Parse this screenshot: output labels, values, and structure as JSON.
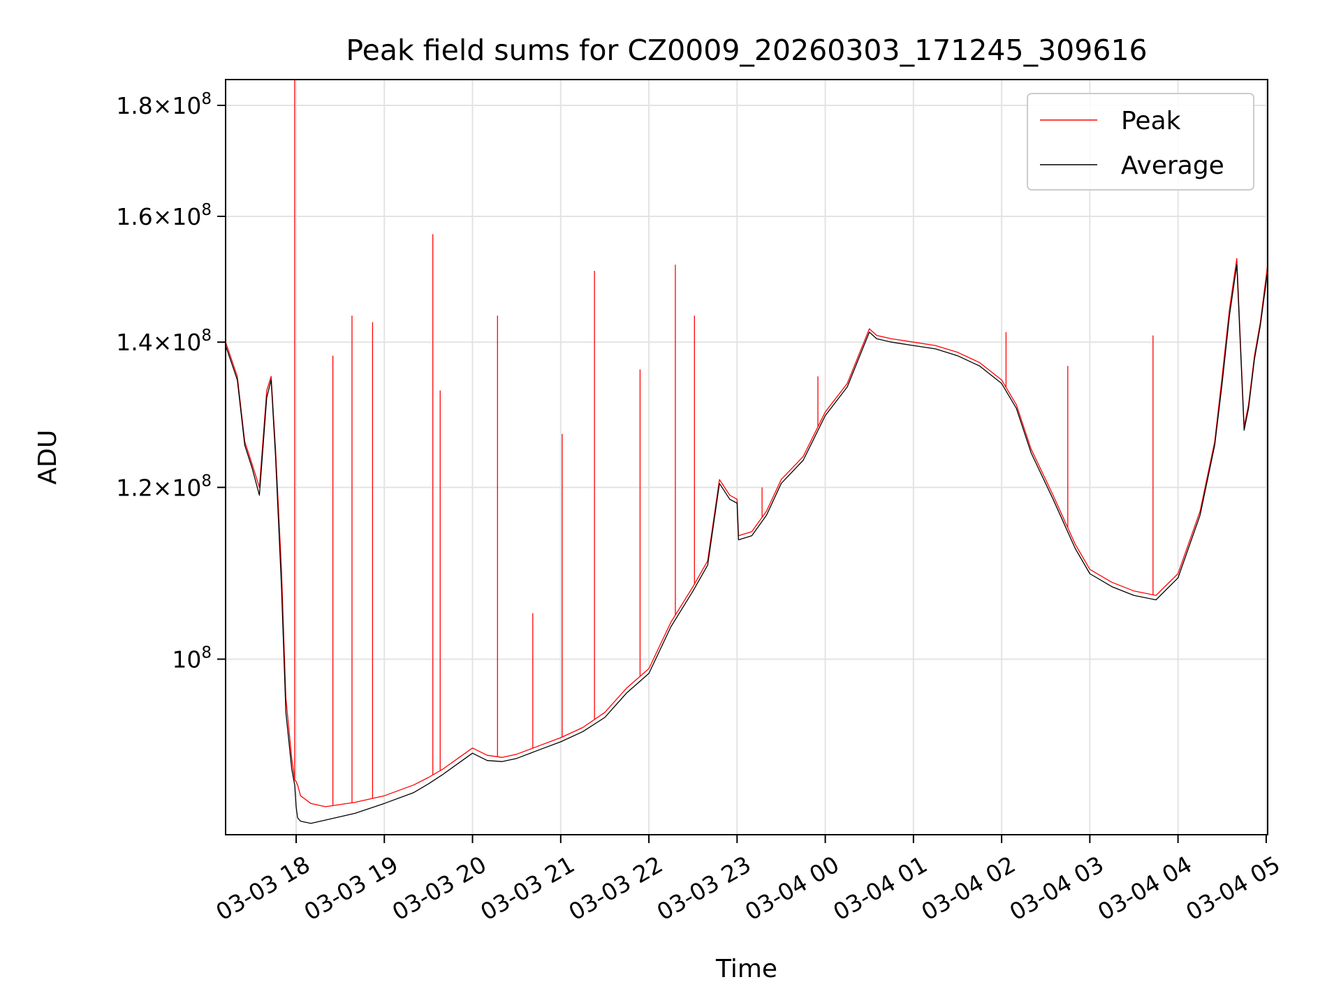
{
  "chart_data": {
    "type": "line",
    "title": "Peak field sums for CZ0009_20260303_171245_309616",
    "xlabel": "Time",
    "ylabel": "ADU",
    "yscale": "log",
    "ylim": [
      83000000,
      185000000
    ],
    "xlim": [
      "03-03 17:12",
      "03-04 05:01"
    ],
    "grid": true,
    "legend": "top-right",
    "x_ticks": [
      "03-03 18",
      "03-03 19",
      "03-03 20",
      "03-03 21",
      "03-03 22",
      "03-03 23",
      "03-04 00",
      "03-04 01",
      "03-04 02",
      "03-04 03",
      "03-04 04",
      "03-04 05"
    ],
    "y_ticks": [
      {
        "value": 100000000,
        "label": "10^8"
      },
      {
        "value": 120000000,
        "label": "1.2×10^8"
      },
      {
        "value": 140000000,
        "label": "1.4×10^8"
      },
      {
        "value": 160000000,
        "label": "1.6×10^8"
      },
      {
        "value": 180000000,
        "label": "1.8×10^8"
      }
    ],
    "series": [
      {
        "name": "Peak",
        "color": "#ff0000",
        "x": [
          "03-03 17:12",
          "03-03 17:20",
          "03-03 17:25",
          "03-03 17:30",
          "03-03 17:35",
          "03-03 17:40",
          "03-03 17:43",
          "03-03 17:46",
          "03-03 17:50",
          "03-03 17:53",
          "03-03 17:57",
          "03-03 17:59",
          "03-03 18:00",
          "03-03 18:01",
          "03-03 18:03",
          "03-03 18:10",
          "03-03 18:20",
          "03-03 18:40",
          "03-03 19:00",
          "03-03 19:20",
          "03-03 19:30",
          "03-03 19:40",
          "03-03 19:50",
          "03-03 20:00",
          "03-03 20:10",
          "03-03 20:20",
          "03-03 20:30",
          "03-03 20:45",
          "03-03 21:00",
          "03-03 21:15",
          "03-03 21:30",
          "03-03 21:45",
          "03-03 22:00",
          "03-03 22:15",
          "03-03 22:30",
          "03-03 22:40",
          "03-03 22:48",
          "03-03 22:55",
          "03-03 23:00",
          "03-03 23:01",
          "03-03 23:10",
          "03-03 23:20",
          "03-03 23:30",
          "03-03 23:45",
          "03-04 00:00",
          "03-04 00:15",
          "03-04 00:30",
          "03-04 00:35",
          "03-04 00:45",
          "03-04 01:00",
          "03-04 01:15",
          "03-04 01:30",
          "03-04 01:45",
          "03-04 02:00",
          "03-04 02:10",
          "03-04 02:20",
          "03-04 02:35",
          "03-04 02:50",
          "03-04 03:00",
          "03-04 03:15",
          "03-04 03:30",
          "03-04 03:45",
          "03-04 04:00",
          "03-04 04:15",
          "03-04 04:25",
          "03-04 04:30",
          "03-04 04:35",
          "03-04 04:40",
          "03-04 04:45",
          "03-04 04:48",
          "03-04 04:52",
          "03-04 04:56",
          "03-04 05:01"
        ],
        "values": [
          140000000,
          135000000,
          126000000,
          123000000,
          120000000,
          133000000,
          135000000,
          125000000,
          110000000,
          96000000,
          90000000,
          88000000,
          87800000,
          87500000,
          86500000,
          85800000,
          85500000,
          85900000,
          86500000,
          87500000,
          88200000,
          89000000,
          90000000,
          91000000,
          90300000,
          90100000,
          90400000,
          91200000,
          92000000,
          93000000,
          94500000,
          97000000,
          99000000,
          104000000,
          108000000,
          111000000,
          121000000,
          119000000,
          118500000,
          114000000,
          114500000,
          117000000,
          121000000,
          124000000,
          130000000,
          134000000,
          142000000,
          141000000,
          140500000,
          140000000,
          139500000,
          138500000,
          137000000,
          134500000,
          131000000,
          125000000,
          119000000,
          113000000,
          110000000,
          108500000,
          107500000,
          107000000,
          109500000,
          117000000,
          126000000,
          135000000,
          145000000,
          153000000,
          128000000,
          131000000,
          138000000,
          143000000,
          152000000
        ],
        "spikes": [
          {
            "x": "03-03 17:59",
            "value": 185000000
          },
          {
            "x": "03-03 18:25",
            "value": 138000000
          },
          {
            "x": "03-03 18:38",
            "value": 144000000
          },
          {
            "x": "03-03 18:52",
            "value": 143000000
          },
          {
            "x": "03-03 19:33",
            "value": 157000000
          },
          {
            "x": "03-03 19:38",
            "value": 133000000
          },
          {
            "x": "03-03 20:17",
            "value": 144000000
          },
          {
            "x": "03-03 20:41",
            "value": 105000000
          },
          {
            "x": "03-03 21:01",
            "value": 127000000
          },
          {
            "x": "03-03 21:23",
            "value": 151000000
          },
          {
            "x": "03-03 21:54",
            "value": 136000000
          },
          {
            "x": "03-03 22:18",
            "value": 152000000
          },
          {
            "x": "03-03 22:31",
            "value": 144000000
          },
          {
            "x": "03-03 23:17",
            "value": 120000000
          },
          {
            "x": "03-03 23:55",
            "value": 135000000
          },
          {
            "x": "03-04 02:03",
            "value": 141500000
          },
          {
            "x": "03-04 02:45",
            "value": 136500000
          },
          {
            "x": "03-04 03:43",
            "value": 141000000
          }
        ]
      },
      {
        "name": "Average",
        "color": "#000000",
        "x": [
          "03-03 17:12",
          "03-03 17:20",
          "03-03 17:25",
          "03-03 17:30",
          "03-03 17:35",
          "03-03 17:40",
          "03-03 17:43",
          "03-03 17:46",
          "03-03 17:50",
          "03-03 17:53",
          "03-03 17:57",
          "03-03 17:59",
          "03-03 18:00",
          "03-03 18:01",
          "03-03 18:03",
          "03-03 18:10",
          "03-03 18:20",
          "03-03 18:40",
          "03-03 19:00",
          "03-03 19:20",
          "03-03 19:30",
          "03-03 19:40",
          "03-03 19:50",
          "03-03 20:00",
          "03-03 20:10",
          "03-03 20:20",
          "03-03 20:30",
          "03-03 20:45",
          "03-03 21:00",
          "03-03 21:15",
          "03-03 21:30",
          "03-03 21:45",
          "03-03 22:00",
          "03-03 22:15",
          "03-03 22:30",
          "03-03 22:40",
          "03-03 22:48",
          "03-03 22:55",
          "03-03 23:00",
          "03-03 23:01",
          "03-03 23:10",
          "03-03 23:20",
          "03-03 23:30",
          "03-03 23:45",
          "03-04 00:00",
          "03-04 00:15",
          "03-04 00:30",
          "03-04 00:35",
          "03-04 00:45",
          "03-04 01:00",
          "03-04 01:15",
          "03-04 01:30",
          "03-04 01:45",
          "03-04 02:00",
          "03-04 02:10",
          "03-04 02:20",
          "03-04 02:35",
          "03-04 02:50",
          "03-04 03:00",
          "03-04 03:15",
          "03-04 03:30",
          "03-04 03:45",
          "03-04 04:00",
          "03-04 04:15",
          "03-04 04:25",
          "03-04 04:30",
          "03-04 04:35",
          "03-04 04:40",
          "03-04 04:45",
          "03-04 04:48",
          "03-04 04:52",
          "03-04 04:56",
          "03-04 05:01"
        ],
        "values": [
          139500000,
          134500000,
          125500000,
          122500000,
          119000000,
          132000000,
          134500000,
          124000000,
          108000000,
          94500000,
          89000000,
          87500000,
          85500000,
          84500000,
          84200000,
          84000000,
          84300000,
          84900000,
          85800000,
          86800000,
          87600000,
          88500000,
          89500000,
          90500000,
          89800000,
          89700000,
          90000000,
          90800000,
          91600000,
          92600000,
          94000000,
          96500000,
          98500000,
          103500000,
          107500000,
          110500000,
          120500000,
          118500000,
          118000000,
          113500000,
          114000000,
          116500000,
          120500000,
          123500000,
          129500000,
          133500000,
          141500000,
          140500000,
          140000000,
          139500000,
          139000000,
          138000000,
          136500000,
          134000000,
          130500000,
          124500000,
          118500000,
          112500000,
          109500000,
          108000000,
          107000000,
          106500000,
          109000000,
          116500000,
          125500000,
          134000000,
          144000000,
          152000000,
          127500000,
          130500000,
          137500000,
          142500000,
          151000000
        ]
      }
    ]
  }
}
